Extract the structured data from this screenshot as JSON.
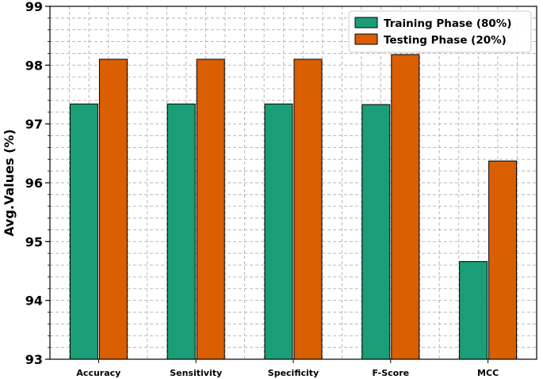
{
  "chart_data": {
    "type": "bar",
    "categories": [
      "Accuracy",
      "Sensitivity",
      "Specificity",
      "F-Score",
      "MCC"
    ],
    "series": [
      {
        "name": "Training Phase (80%)",
        "color": "#1b9e77",
        "values": [
          97.34,
          97.34,
          97.34,
          97.33,
          94.66
        ]
      },
      {
        "name": "Testing Phase (20%)",
        "color": "#d95f02",
        "values": [
          98.1,
          98.1,
          98.1,
          98.18,
          96.37
        ]
      }
    ],
    "title": "",
    "xlabel": "",
    "ylabel": "Avg.Values (%)",
    "ylim": [
      93,
      99
    ],
    "yticks": [
      "93",
      "94",
      "95",
      "96",
      "97",
      "98",
      "99"
    ],
    "grid": true,
    "legend": "top-right"
  }
}
